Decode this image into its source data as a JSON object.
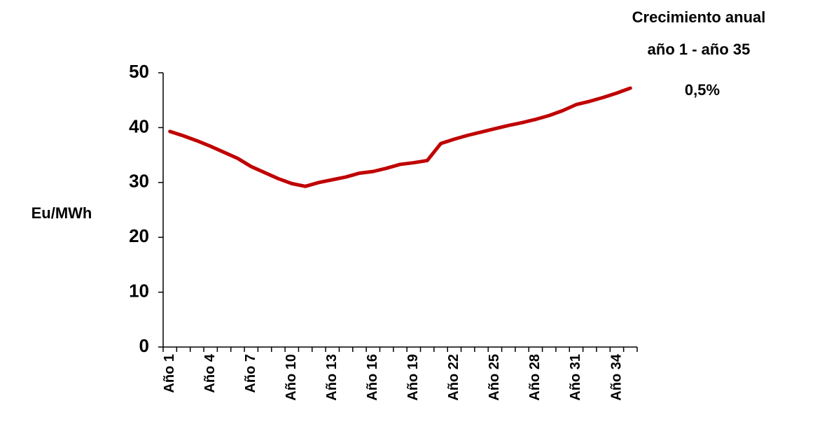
{
  "chart_data": {
    "type": "line",
    "annotations": [
      "Crecimiento anual",
      "año 1 - año 35",
      "0,5%"
    ],
    "y_label": "Eu/MWh",
    "categories": [
      "Año 1",
      null,
      null,
      "Año 4",
      null,
      null,
      "Año 7",
      null,
      null,
      "Año 10",
      null,
      null,
      "Año 13",
      null,
      null,
      "Año 16",
      null,
      null,
      "Año 19",
      null,
      null,
      "Año 22",
      null,
      null,
      "Año 25",
      null,
      null,
      "Año 28",
      null,
      null,
      "Año 31",
      null,
      null,
      "Año 34",
      null
    ],
    "series": [
      {
        "name": "Eu/MWh",
        "color": "#c00000",
        "values": [
          39.3,
          38.5,
          37.6,
          36.6,
          35.5,
          34.4,
          32.9,
          31.8,
          30.7,
          29.8,
          29.3,
          30.0,
          30.5,
          31.0,
          31.7,
          32.0,
          32.6,
          33.3,
          33.6,
          34.0,
          37.1,
          37.9,
          38.6,
          39.2,
          39.8,
          40.4,
          40.9,
          41.5,
          42.2,
          43.1,
          44.2,
          44.8,
          45.5,
          46.3,
          47.2
        ]
      }
    ],
    "ylim": [
      0,
      50
    ],
    "yticks": [
      0,
      10,
      20,
      30,
      40,
      50
    ],
    "grid": false
  }
}
